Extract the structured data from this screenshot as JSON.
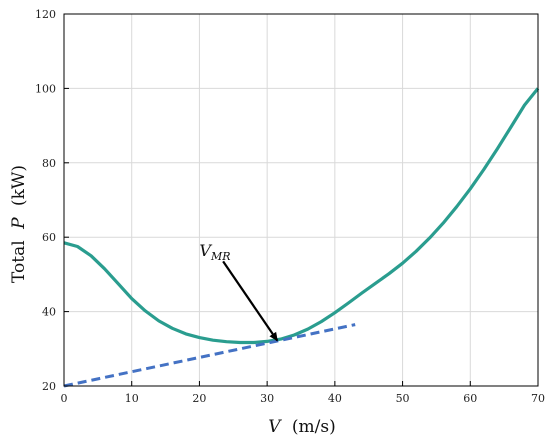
{
  "chart_data": {
    "type": "line",
    "xlabel": {
      "var": "V",
      "unit": "(m/s)"
    },
    "ylabel": {
      "prefix": "Total",
      "var": "P",
      "unit": "(kW)"
    },
    "xlim": [
      0,
      70
    ],
    "ylim": [
      20,
      120
    ],
    "xticks": [
      0,
      10,
      20,
      30,
      40,
      50,
      60,
      70
    ],
    "yticks": [
      20,
      40,
      60,
      80,
      100,
      120
    ],
    "grid": true,
    "series": [
      {
        "color": "#2a9d8f",
        "style": "solid",
        "x": [
          0,
          2,
          4,
          6,
          8,
          10,
          12,
          14,
          16,
          18,
          20,
          22,
          24,
          26,
          28,
          30,
          32,
          34,
          36,
          38,
          40,
          42,
          44,
          46,
          48,
          50,
          52,
          54,
          56,
          58,
          60,
          62,
          64,
          66,
          68,
          70
        ],
        "y": [
          58.5,
          57.5,
          55,
          51.5,
          47.5,
          43.5,
          40.2,
          37.5,
          35.5,
          34,
          33,
          32.3,
          31.9,
          31.7,
          31.7,
          32,
          32.6,
          33.7,
          35.3,
          37.3,
          39.7,
          42.3,
          45,
          47.6,
          50.2,
          53,
          56.2,
          59.8,
          63.8,
          68.2,
          73,
          78.2,
          83.8,
          89.6,
          95.5,
          100
        ]
      },
      {
        "color": "#4472c4",
        "style": "dashed",
        "x": [
          0,
          43
        ],
        "y": [
          20,
          36.5
        ]
      }
    ],
    "annotations": [
      {
        "base": "V",
        "sub": "MR",
        "text_x": 20,
        "text_y": 55,
        "arrow_from": [
          23.5,
          53.5
        ],
        "arrow_to": [
          31.5,
          32.2
        ]
      }
    ]
  }
}
